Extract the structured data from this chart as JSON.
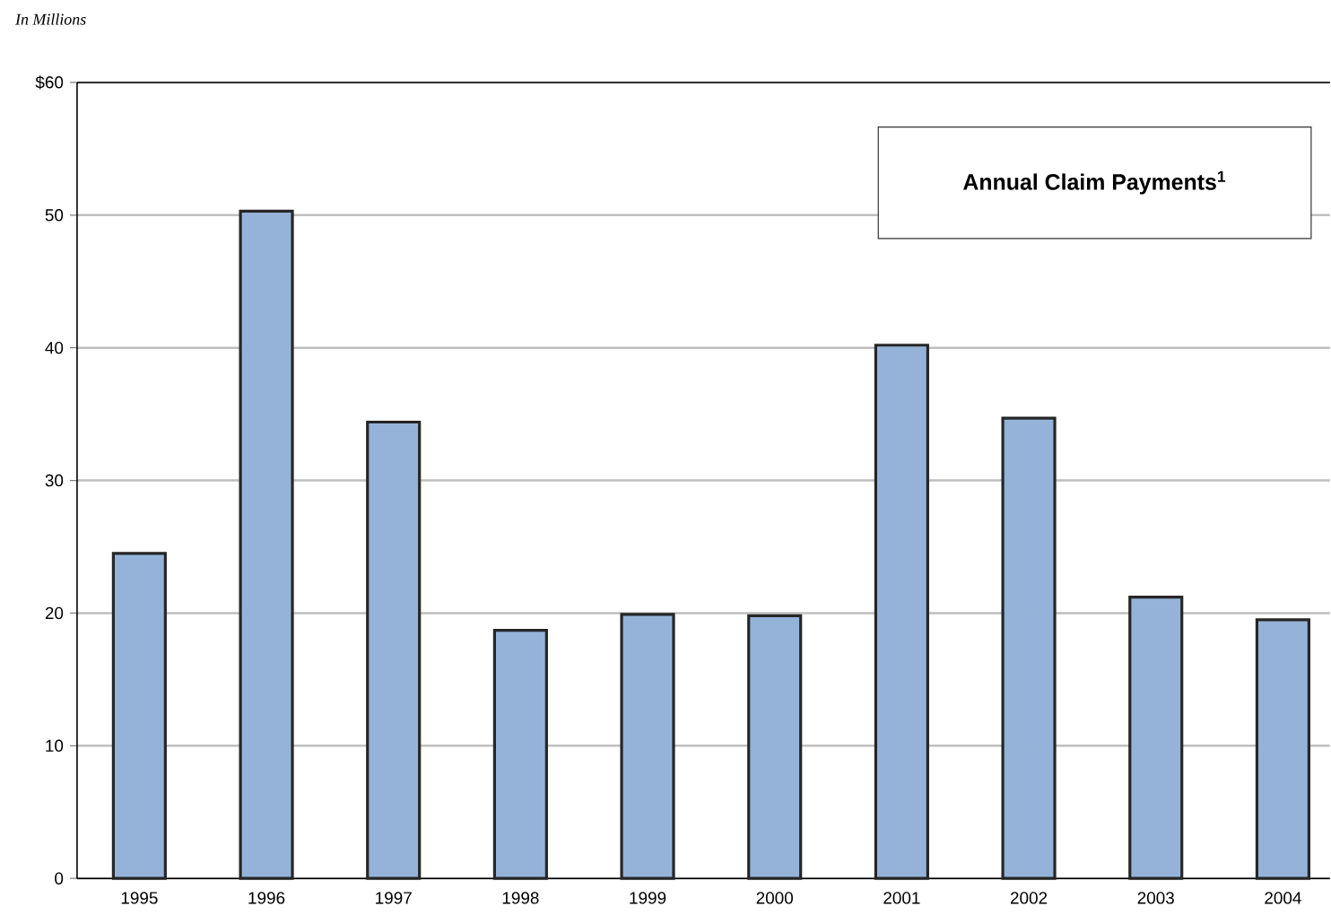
{
  "chart_data": {
    "type": "bar",
    "title": "Annual Claim Payments$^{1}$",
    "ylabel": "In Millions",
    "categories": [
      "1995",
      "1996",
      "1997",
      "1998",
      "1999",
      "2000",
      "2001",
      "2002",
      "2003",
      "2004"
    ],
    "values": [
      24.5,
      50.3,
      34.4,
      18.7,
      19.9,
      19.8,
      40.2,
      34.7,
      21.2,
      19.5
    ],
    "color": "#95b3d9",
    "ylim": [
      0,
      60
    ],
    "yticks": [
      0,
      10,
      20,
      30,
      40,
      50,
      {
        "value": 60,
        "label": "$60"
      }
    ],
    "grid": "y"
  }
}
